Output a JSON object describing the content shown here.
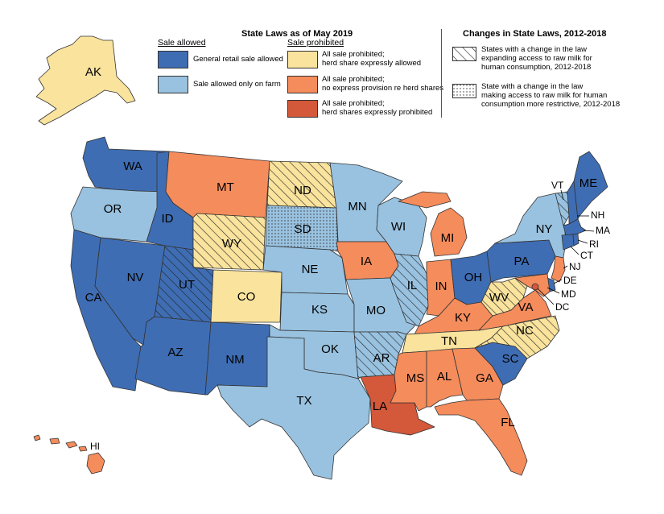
{
  "title": "State Laws as of May 2019",
  "changes_title": "Changes in State Laws, 2012-2018",
  "legend": {
    "sale_allowed_header": "Sale allowed",
    "sale_prohibited_header": "Sale prohibited",
    "general_retail": "General retail sale allowed",
    "farm_only": "Sale allowed only on farm",
    "herd_share_allowed_1": "All sale prohibited;",
    "herd_share_allowed_2": "herd share expressly allowed",
    "no_provision_1": "All sale prohibited;",
    "no_provision_2": "no express provision re herd shares",
    "herd_prohibited_1": "All sale prohibited;",
    "herd_prohibited_2": "herd shares expressly prohibited",
    "expanding_1": "States with a change in the law",
    "expanding_2": "expanding access to raw milk for",
    "expanding_3": "human consumption, 2012-2018",
    "restrictive_1": "State with a change in the law",
    "restrictive_2": "making access to raw milk for human",
    "restrictive_3": "consumption more restrictive, 2012-2018"
  },
  "colors": {
    "general_retail": "#3f6db3",
    "farm_only": "#99c2e0",
    "herd_share_allowed": "#f9e39d",
    "no_provision": "#f58c5c",
    "herd_prohibited": "#d4583a"
  },
  "states": {
    "AK": "AK",
    "HI": "HI",
    "WA": "WA",
    "OR": "OR",
    "CA": "CA",
    "NV": "NV",
    "ID": "ID",
    "MT": "MT",
    "WY": "WY",
    "UT": "UT",
    "AZ": "AZ",
    "CO": "CO",
    "NM": "NM",
    "ND": "ND",
    "SD": "SD",
    "NE": "NE",
    "KS": "KS",
    "OK": "OK",
    "TX": "TX",
    "MN": "MN",
    "IA": "IA",
    "MO": "MO",
    "AR": "AR",
    "LA": "LA",
    "WI": "WI",
    "IL": "IL",
    "MI": "MI",
    "IN": "IN",
    "OH": "OH",
    "KY": "KY",
    "TN": "TN",
    "MS": "MS",
    "AL": "AL",
    "GA": "GA",
    "FL": "FL",
    "SC": "SC",
    "NC": "NC",
    "VA": "VA",
    "WV": "WV",
    "PA": "PA",
    "NY": "NY",
    "VT": "VT",
    "NH": "NH",
    "ME": "ME",
    "MA": "MA",
    "RI": "RI",
    "CT": "CT",
    "NJ": "NJ",
    "DE": "DE",
    "MD": "MD",
    "DC": "DC"
  }
}
